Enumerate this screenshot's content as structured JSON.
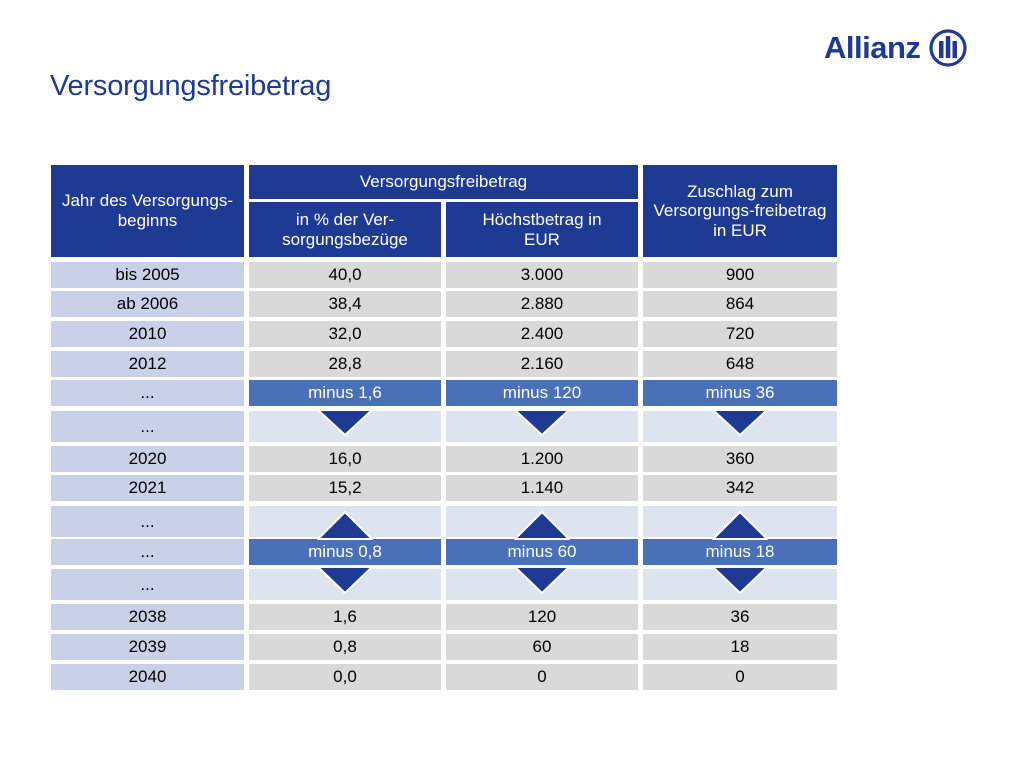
{
  "title": "Versorgungsfreibetrag",
  "logo": {
    "text": "Allianz",
    "icon": "allianz-eagle-icon"
  },
  "colors": {
    "header": "#1f3a93",
    "minus_row": "#4a70b8",
    "year_cell": "#c9d1e9",
    "value_cell": "#d9d9d9",
    "empty_cell": "#dde3ef"
  },
  "table": {
    "headers": {
      "year": "Jahr des Versorgungs-beginns",
      "group": "Versorgungsfreibetrag",
      "percent": "in % der Ver-sorgungsbezüge",
      "max": "Höchstbetrag in EUR",
      "surcharge": "Zuschlag zum Versorgungs-freibetrag in EUR"
    },
    "rows": [
      {
        "year": "bis 2005",
        "pct": "40,0",
        "max": "3.000",
        "sur": "900",
        "kind": "value"
      },
      {
        "year": "ab 2006",
        "pct": "38,4",
        "max": "2.880",
        "sur": "864",
        "kind": "value"
      },
      {
        "year": "2010",
        "pct": "32,0",
        "max": "2.400",
        "sur": "720",
        "kind": "value"
      },
      {
        "year": "2012",
        "pct": "28,8",
        "max": "2.160",
        "sur": "648",
        "kind": "value"
      },
      {
        "year": "...",
        "pct": "minus 1,6",
        "max": "minus 120",
        "sur": "minus 36",
        "kind": "minus"
      },
      {
        "year": "...",
        "pct": "",
        "max": "",
        "sur": "",
        "kind": "empty"
      },
      {
        "year": "2020",
        "pct": "16,0",
        "max": "1.200",
        "sur": "360",
        "kind": "value"
      },
      {
        "year": "2021",
        "pct": "15,2",
        "max": "1.140",
        "sur": "342",
        "kind": "value"
      },
      {
        "year": "...",
        "pct": "",
        "max": "",
        "sur": "",
        "kind": "empty"
      },
      {
        "year": "...",
        "pct": "minus 0,8",
        "max": "minus 60",
        "sur": "minus 18",
        "kind": "minus"
      },
      {
        "year": "...",
        "pct": "",
        "max": "",
        "sur": "",
        "kind": "empty"
      },
      {
        "year": "2038",
        "pct": "1,6",
        "max": "120",
        "sur": "36",
        "kind": "value"
      },
      {
        "year": "2039",
        "pct": "0,8",
        "max": "60",
        "sur": "18",
        "kind": "value"
      },
      {
        "year": "2040",
        "pct": "0,0",
        "max": "0",
        "sur": "0",
        "kind": "value"
      }
    ]
  }
}
